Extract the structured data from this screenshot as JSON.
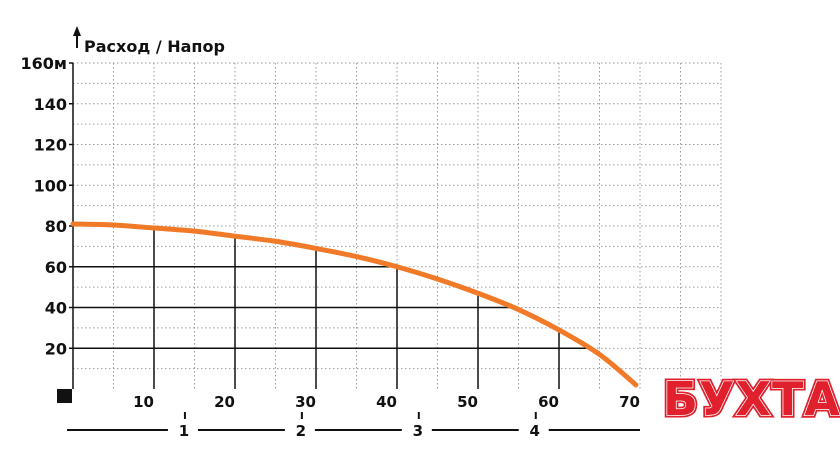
{
  "chart_data": {
    "type": "line",
    "title": "Расход / Напор",
    "y_ticks": [
      "160м",
      "140",
      "120",
      "100",
      "80",
      "60",
      "40",
      "20"
    ],
    "y_tick_values": [
      160,
      140,
      120,
      100,
      80,
      60,
      40,
      20
    ],
    "x_ticks": [
      "10",
      "20",
      "30",
      "40",
      "50",
      "60",
      "70"
    ],
    "x_tick_values": [
      10,
      20,
      30,
      40,
      50,
      60,
      70
    ],
    "x2_ticks": [
      "1",
      "2",
      "3",
      "4"
    ],
    "x2_tick_values": [
      1,
      2,
      3,
      4
    ],
    "xlim": [
      0,
      80
    ],
    "ylim": [
      0,
      160
    ],
    "x2lim": [
      0,
      4.9
    ],
    "grid": true,
    "series": [
      {
        "color": "#F07A28",
        "points": [
          [
            0,
            81
          ],
          [
            5,
            80.5
          ],
          [
            10,
            79
          ],
          [
            15,
            77.5
          ],
          [
            20,
            75
          ],
          [
            25,
            72.5
          ],
          [
            30,
            69
          ],
          [
            35,
            65
          ],
          [
            40,
            60
          ],
          [
            45,
            54
          ],
          [
            50,
            47
          ],
          [
            55,
            39
          ],
          [
            60,
            29
          ],
          [
            65,
            17
          ],
          [
            69.5,
            2
          ]
        ]
      }
    ]
  },
  "brand": {
    "text": "БУХТА",
    "color": "#E0202C"
  },
  "colors": {
    "grid": "#111111",
    "curve": "#F07A28"
  }
}
